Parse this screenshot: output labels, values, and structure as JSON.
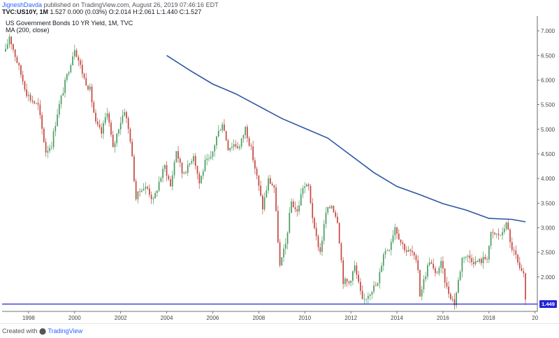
{
  "header": {
    "author": "JigneshDavda",
    "published_text": "published on TradingView.com, August 26, 2019 07:46:16 EDT",
    "symbol": "TVC:US10Y, 1M",
    "ohlc": "1.527 0.000 (0.03%) O:2.014 H:2.061 L:1.440 C:1.527"
  },
  "footer": {
    "created_with": "Created with",
    "brand": "TradingView"
  },
  "chart_data": {
    "type": "candlestick",
    "title": "US Government Bonds 10 YR Yield, 1M, TVC",
    "indicator": "MA (200, close)",
    "xlabel": "",
    "ylabel": "",
    "x_ticks": [
      "1998",
      "2000",
      "2002",
      "2004",
      "2006",
      "2008",
      "2010",
      "2012",
      "2014",
      "2016",
      "2018",
      "20"
    ],
    "y_ticks": [
      2.0,
      2.5,
      3.0,
      3.5,
      4.0,
      4.5,
      5.0,
      5.5,
      6.0,
      6.5,
      7.0
    ],
    "y_tick_labels": [
      "2.000",
      "2.500",
      "3.000",
      "3.500",
      "4.000",
      "4.500",
      "5.000",
      "5.500",
      "6.000",
      "6.500",
      "7.000"
    ],
    "ylim": [
      1.3,
      7.3
    ],
    "horizontal_line": {
      "value": 1.449,
      "label": "1.449",
      "color": "#2424d9"
    },
    "colors": {
      "up": "#4a9b60",
      "down": "#c2483f",
      "ma": "#2c56a5",
      "axis": "#444444"
    },
    "candles_close_path": [
      [
        "1997-01",
        6.58
      ],
      [
        "1997-03",
        6.9
      ],
      [
        "1997-06",
        6.5
      ],
      [
        "1997-09",
        6.12
      ],
      [
        "1997-12",
        5.74
      ],
      [
        "1998-02",
        5.62
      ],
      [
        "1998-06",
        5.47
      ],
      [
        "1998-08",
        5.0
      ],
      [
        "1998-10",
        4.55
      ],
      [
        "1999-01",
        4.7
      ],
      [
        "1999-04",
        5.34
      ],
      [
        "1999-08",
        5.94
      ],
      [
        "2000-01",
        6.66
      ],
      [
        "2000-06",
        6.03
      ],
      [
        "2000-09",
        5.8
      ],
      [
        "2000-12",
        5.11
      ],
      [
        "2001-03",
        4.92
      ],
      [
        "2001-06",
        5.39
      ],
      [
        "2001-09",
        4.59
      ],
      [
        "2001-12",
        5.05
      ],
      [
        "2002-03",
        5.4
      ],
      [
        "2002-06",
        4.8
      ],
      [
        "2002-09",
        3.6
      ],
      [
        "2002-12",
        3.82
      ],
      [
        "2003-03",
        3.8
      ],
      [
        "2003-06",
        3.54
      ],
      [
        "2003-09",
        3.93
      ],
      [
        "2003-12",
        4.25
      ],
      [
        "2004-03",
        3.84
      ],
      [
        "2004-06",
        4.58
      ],
      [
        "2004-09",
        4.12
      ],
      [
        "2004-12",
        4.22
      ],
      [
        "2005-03",
        4.5
      ],
      [
        "2005-06",
        3.91
      ],
      [
        "2005-09",
        4.32
      ],
      [
        "2005-12",
        4.39
      ],
      [
        "2006-03",
        4.85
      ],
      [
        "2006-06",
        5.14
      ],
      [
        "2006-09",
        4.63
      ],
      [
        "2006-12",
        4.7
      ],
      [
        "2007-03",
        4.64
      ],
      [
        "2007-06",
        5.03
      ],
      [
        "2007-09",
        4.59
      ],
      [
        "2007-12",
        4.03
      ],
      [
        "2008-03",
        3.41
      ],
      [
        "2008-06",
        3.97
      ],
      [
        "2008-09",
        3.82
      ],
      [
        "2008-12",
        2.21
      ],
      [
        "2009-03",
        2.66
      ],
      [
        "2009-06",
        3.53
      ],
      [
        "2009-09",
        3.31
      ],
      [
        "2009-12",
        3.84
      ],
      [
        "2010-03",
        3.83
      ],
      [
        "2010-06",
        2.93
      ],
      [
        "2010-09",
        2.51
      ],
      [
        "2010-12",
        3.3
      ],
      [
        "2011-03",
        3.47
      ],
      [
        "2011-06",
        3.16
      ],
      [
        "2011-09",
        1.92
      ],
      [
        "2011-12",
        1.88
      ],
      [
        "2012-03",
        2.21
      ],
      [
        "2012-07",
        1.49
      ],
      [
        "2012-12",
        1.76
      ],
      [
        "2013-03",
        1.85
      ],
      [
        "2013-06",
        2.49
      ],
      [
        "2013-09",
        2.61
      ],
      [
        "2013-12",
        3.03
      ],
      [
        "2014-03",
        2.72
      ],
      [
        "2014-06",
        2.53
      ],
      [
        "2014-09",
        2.49
      ],
      [
        "2014-12",
        2.17
      ],
      [
        "2015-01",
        1.64
      ],
      [
        "2015-06",
        2.35
      ],
      [
        "2015-09",
        2.04
      ],
      [
        "2015-12",
        2.27
      ],
      [
        "2016-03",
        1.77
      ],
      [
        "2016-07",
        1.46
      ],
      [
        "2016-11",
        2.38
      ],
      [
        "2016-12",
        2.44
      ],
      [
        "2017-03",
        2.39
      ],
      [
        "2017-06",
        2.3
      ],
      [
        "2017-09",
        2.33
      ],
      [
        "2017-12",
        2.41
      ],
      [
        "2018-02",
        2.86
      ],
      [
        "2018-05",
        2.86
      ],
      [
        "2018-08",
        2.86
      ],
      [
        "2018-10",
        3.15
      ],
      [
        "2018-12",
        2.68
      ],
      [
        "2019-03",
        2.41
      ],
      [
        "2019-05",
        2.12
      ],
      [
        "2019-07",
        2.01
      ],
      [
        "2019-08",
        1.53
      ]
    ],
    "ma_200": [
      [
        "2004-01",
        6.5
      ],
      [
        "2005-01",
        6.2
      ],
      [
        "2006-01",
        5.92
      ],
      [
        "2007-01",
        5.72
      ],
      [
        "2008-01",
        5.47
      ],
      [
        "2009-01",
        5.22
      ],
      [
        "2010-01",
        5.02
      ],
      [
        "2011-01",
        4.82
      ],
      [
        "2012-01",
        4.47
      ],
      [
        "2013-01",
        4.12
      ],
      [
        "2014-01",
        3.84
      ],
      [
        "2015-01",
        3.67
      ],
      [
        "2016-01",
        3.49
      ],
      [
        "2017-01",
        3.36
      ],
      [
        "2018-01",
        3.19
      ],
      [
        "2019-01",
        3.17
      ],
      [
        "2019-08",
        3.12
      ]
    ]
  }
}
